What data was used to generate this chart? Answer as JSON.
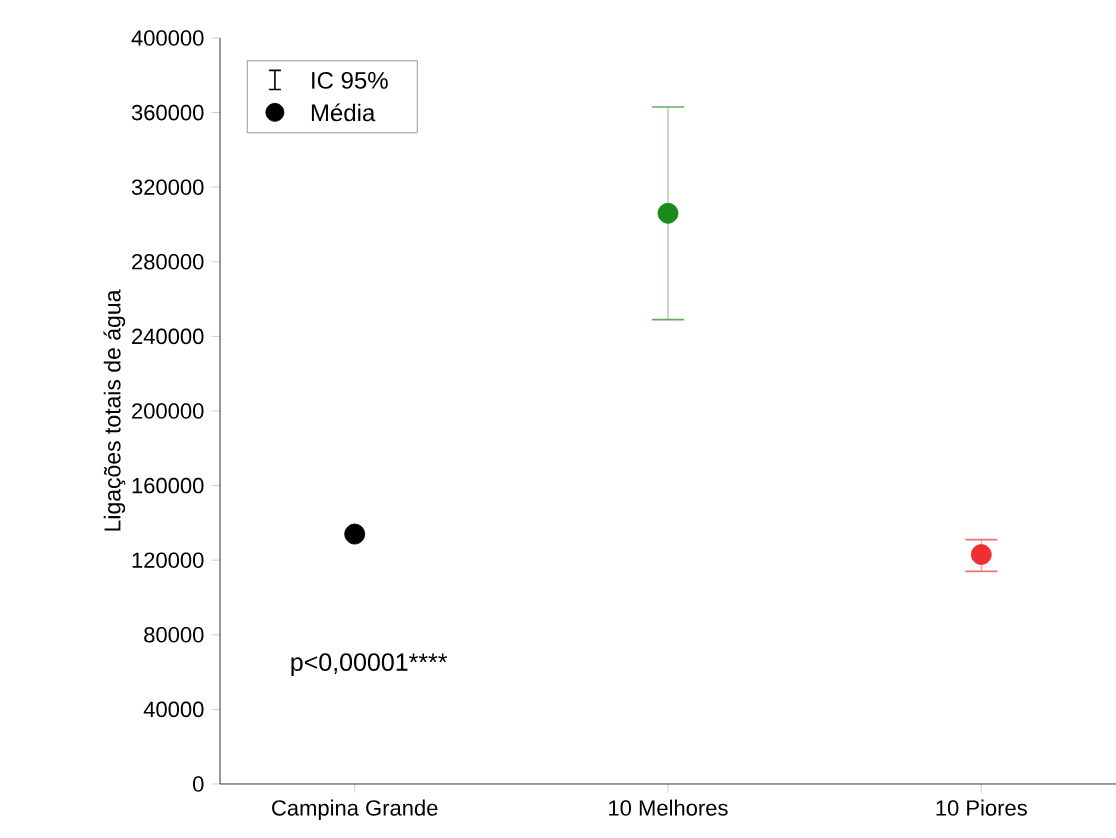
{
  "chart_data": {
    "type": "scatter",
    "ylabel": "Ligações totais de água",
    "categories": [
      "Campina Grande",
      "10 Melhores",
      "10 Piores"
    ],
    "series": [
      {
        "name": "Média",
        "colors": [
          "#000000",
          "#1a8a1a",
          "#f03030"
        ],
        "values": [
          134000,
          306000,
          123000
        ],
        "errors": [
          null,
          [
            249000,
            363000
          ],
          [
            114000,
            131000
          ]
        ]
      }
    ],
    "ylim": [
      0,
      400000
    ],
    "yticks": [
      0,
      40000,
      80000,
      120000,
      160000,
      200000,
      240000,
      280000,
      320000,
      360000,
      400000
    ],
    "annotations": [
      "IC 95%",
      "p<0,00001****"
    ],
    "marker": "circle",
    "legend": "top left",
    "grid": false
  }
}
